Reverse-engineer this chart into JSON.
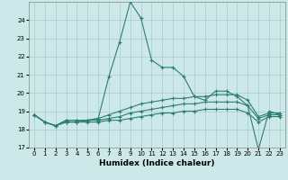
{
  "xlabel": "Humidex (Indice chaleur)",
  "hours": [
    0,
    1,
    2,
    3,
    4,
    5,
    6,
    7,
    8,
    9,
    10,
    11,
    12,
    13,
    14,
    15,
    16,
    17,
    18,
    19,
    20,
    21,
    22,
    23
  ],
  "line_max": [
    18.8,
    18.4,
    18.2,
    18.5,
    18.5,
    18.5,
    18.6,
    20.9,
    22.8,
    25.0,
    24.1,
    21.8,
    21.4,
    21.4,
    20.9,
    19.8,
    19.6,
    20.1,
    20.1,
    19.8,
    19.3,
    16.9,
    19.0,
    18.8
  ],
  "line_mid1": [
    18.8,
    18.4,
    18.2,
    18.5,
    18.5,
    18.5,
    18.6,
    18.8,
    19.0,
    19.2,
    19.4,
    19.5,
    19.6,
    19.7,
    19.7,
    19.8,
    19.8,
    19.9,
    19.9,
    19.9,
    19.6,
    18.7,
    18.9,
    18.9
  ],
  "line_mid2": [
    18.8,
    18.4,
    18.2,
    18.4,
    18.4,
    18.5,
    18.5,
    18.6,
    18.7,
    18.9,
    19.0,
    19.1,
    19.2,
    19.3,
    19.4,
    19.4,
    19.5,
    19.5,
    19.5,
    19.5,
    19.3,
    18.6,
    18.8,
    18.8
  ],
  "line_min": [
    18.8,
    18.4,
    18.2,
    18.4,
    18.4,
    18.4,
    18.4,
    18.5,
    18.5,
    18.6,
    18.7,
    18.8,
    18.9,
    18.9,
    19.0,
    19.0,
    19.1,
    19.1,
    19.1,
    19.1,
    18.9,
    18.4,
    18.7,
    18.7
  ],
  "line_color": "#2e7d73",
  "bg_color": "#cce8e8",
  "grid_color": "#aacccc",
  "ylim": [
    17,
    25
  ],
  "yticks": [
    17,
    18,
    19,
    20,
    21,
    22,
    23,
    24
  ],
  "marker": "+",
  "markersize": 3,
  "linewidth": 0.8,
  "tick_fontsize": 5,
  "label_fontsize": 6.5
}
